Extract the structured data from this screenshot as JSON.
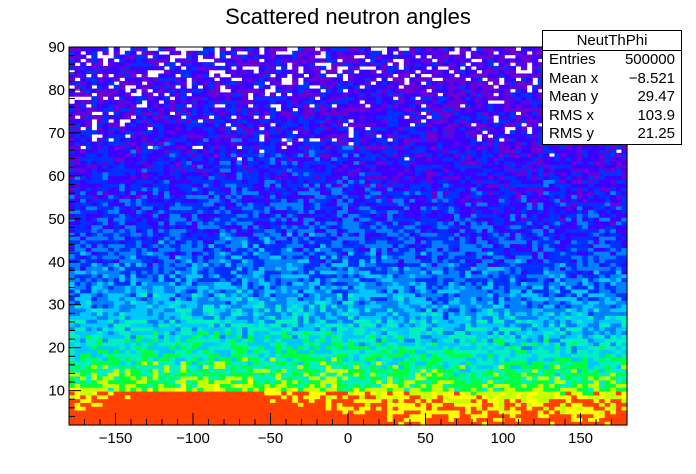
{
  "chart_data": {
    "type": "heatmap",
    "title": "Scattered neutron angles",
    "xlabel": "",
    "ylabel": "",
    "xlim": [
      -180,
      180
    ],
    "ylim": [
      2,
      90
    ],
    "x_ticks": [
      -150,
      -100,
      -50,
      0,
      50,
      100,
      150
    ],
    "y_ticks": [
      10,
      20,
      30,
      40,
      50,
      60,
      70,
      80,
      90
    ],
    "bins_x": 100,
    "bins_y": 100,
    "palette": [
      "#6a00d6",
      "#3c00ff",
      "#0030ff",
      "#0080ff",
      "#00c8ff",
      "#00f0c0",
      "#00ff40",
      "#c8ff00",
      "#ffff00",
      "#ff4000"
    ],
    "density_profile": "decreasing with y; highest near y = 2-10, densest around x = -150 to -50",
    "grid": false,
    "legend": "none"
  },
  "stats": {
    "name": "NeutThPhi",
    "rows": [
      {
        "label": "Entries",
        "value": "500000"
      },
      {
        "label": "Mean x",
        "value": "−8.521"
      },
      {
        "label": "Mean y",
        "value": "29.47"
      },
      {
        "label": "RMS x",
        "value": "103.9"
      },
      {
        "label": "RMS y",
        "value": "21.25"
      }
    ]
  }
}
